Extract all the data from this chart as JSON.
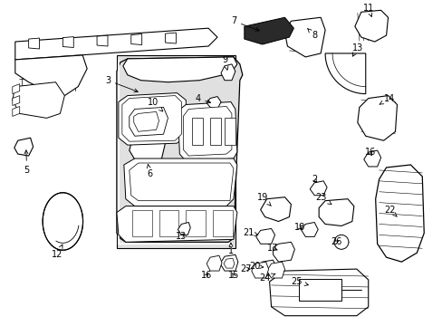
{
  "bg_color": "#ffffff",
  "fig_width": 4.89,
  "fig_height": 3.6,
  "dpi": 100,
  "line_color": "#000000",
  "text_color": "#000000",
  "gray_fill": "#e0e0e0",
  "font_size": 7.0,
  "arrow_lw": 0.6
}
